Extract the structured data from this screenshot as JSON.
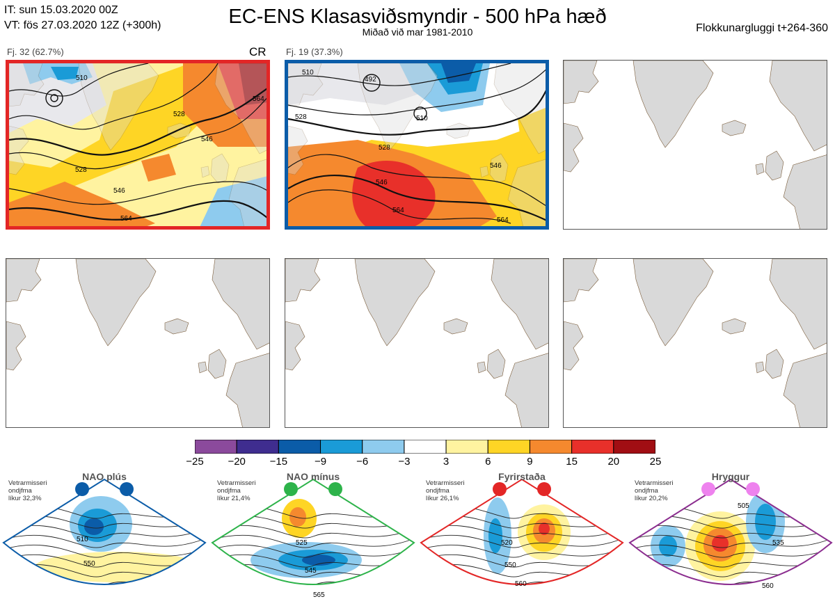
{
  "header": {
    "it_line": "IT: sun 15.03.2020 00Z",
    "vt_line": "VT: fös 27.03.2020 12Z  (+300h)",
    "title": "EC-ENS Klasasviðsmyndir - 500 hPa hæð",
    "subtitle": "Miðað við mar 1981-2010",
    "window": "Flokkunargluggi t+264-360"
  },
  "clusters": [
    {
      "label": "Fj. 32 (62.7%)",
      "tag": "CR",
      "border": "#e32626",
      "contours": [
        "510",
        "528",
        "546",
        "546",
        "564",
        "564",
        "528"
      ]
    },
    {
      "label": "Fj. 19 (37.3%)",
      "tag": "",
      "border": "#0b5ca8",
      "contours": [
        "492",
        "510",
        "528",
        "528",
        "546",
        "546",
        "564",
        "564",
        "510"
      ]
    }
  ],
  "colorbar": {
    "ticks": [
      "−25",
      "−20",
      "−15",
      "−9",
      "−6",
      "−3",
      "3",
      "6",
      "9",
      "15",
      "20",
      "25"
    ],
    "colors": [
      "#8b4a9c",
      "#3f2d8f",
      "#0b5ca8",
      "#1a9bd7",
      "#8ecbee",
      "#ffffff",
      "#fff3a0",
      "#fed525",
      "#f5892e",
      "#e8302a",
      "#a10e13"
    ]
  },
  "regimes": [
    {
      "name": "NAO plús",
      "note": [
        "Vetrarmisseri",
        "ondjfma",
        "líkur 32,3%"
      ],
      "color": "#0b5ca8",
      "dot_color": "#0b5ca8",
      "contours": [
        "510",
        "550"
      ]
    },
    {
      "name": "NAO mínus",
      "note": [
        "Vetrarmisseri",
        "ondjfma",
        "líkur 21,4%"
      ],
      "color": "#2db34a",
      "dot_color": "#2db34a",
      "contours": [
        "525",
        "545",
        "565"
      ]
    },
    {
      "name": "Fyrirstaða",
      "note": [
        "Vetrarmisseri",
        "ondjfma",
        "líkur 26,1%"
      ],
      "color": "#e32626",
      "dot_color": "#e32626",
      "contours": [
        "520",
        "550",
        "560"
      ]
    },
    {
      "name": "Hryggur",
      "note": [
        "Vetrarmisseri",
        "ondjfma",
        "líkur 20,2%"
      ],
      "color": "#8b2d8f",
      "dot_color": "#ee82ee",
      "contours": [
        "505",
        "535",
        "560"
      ]
    }
  ]
}
